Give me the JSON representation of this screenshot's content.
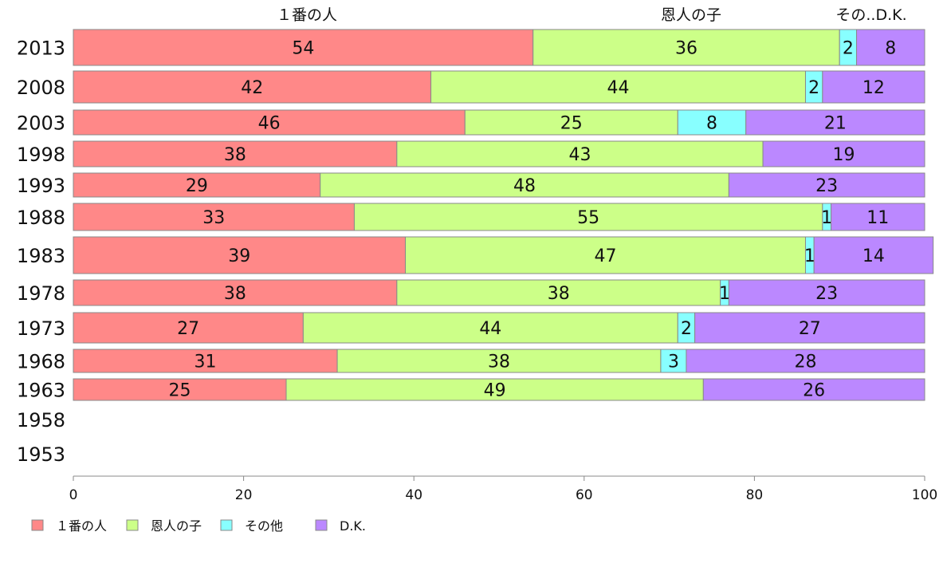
{
  "chart_data": {
    "type": "bar",
    "orientation": "horizontal",
    "stacked": true,
    "categories": [
      "2013",
      "2008",
      "2003",
      "1998",
      "1993",
      "1988",
      "1983",
      "1978",
      "1973",
      "1968",
      "1963",
      "1958",
      "1953"
    ],
    "series": [
      {
        "name": "１番の人",
        "color": "#ff8888",
        "values": [
          54,
          42,
          46,
          38,
          29,
          33,
          39,
          38,
          27,
          31,
          25,
          null,
          null
        ]
      },
      {
        "name": "恩人の子",
        "color": "#ccff88",
        "values": [
          36,
          44,
          25,
          43,
          48,
          55,
          47,
          38,
          44,
          38,
          49,
          null,
          null
        ]
      },
      {
        "name": "その他",
        "color": "#88ffff",
        "values": [
          2,
          2,
          8,
          0,
          0,
          1,
          1,
          1,
          2,
          3,
          0,
          null,
          null
        ]
      },
      {
        "name": "D.K.",
        "color": "#bb88ff",
        "values": [
          8,
          12,
          21,
          19,
          23,
          11,
          14,
          23,
          27,
          28,
          26,
          null,
          null
        ]
      }
    ],
    "top_labels": [
      "１番の人",
      "恩人の子",
      "その..D.K."
    ],
    "xlim": [
      0,
      100
    ],
    "xticks": [
      0,
      20,
      40,
      60,
      80,
      100
    ],
    "legend_position": "bottom-left",
    "grid": false
  }
}
